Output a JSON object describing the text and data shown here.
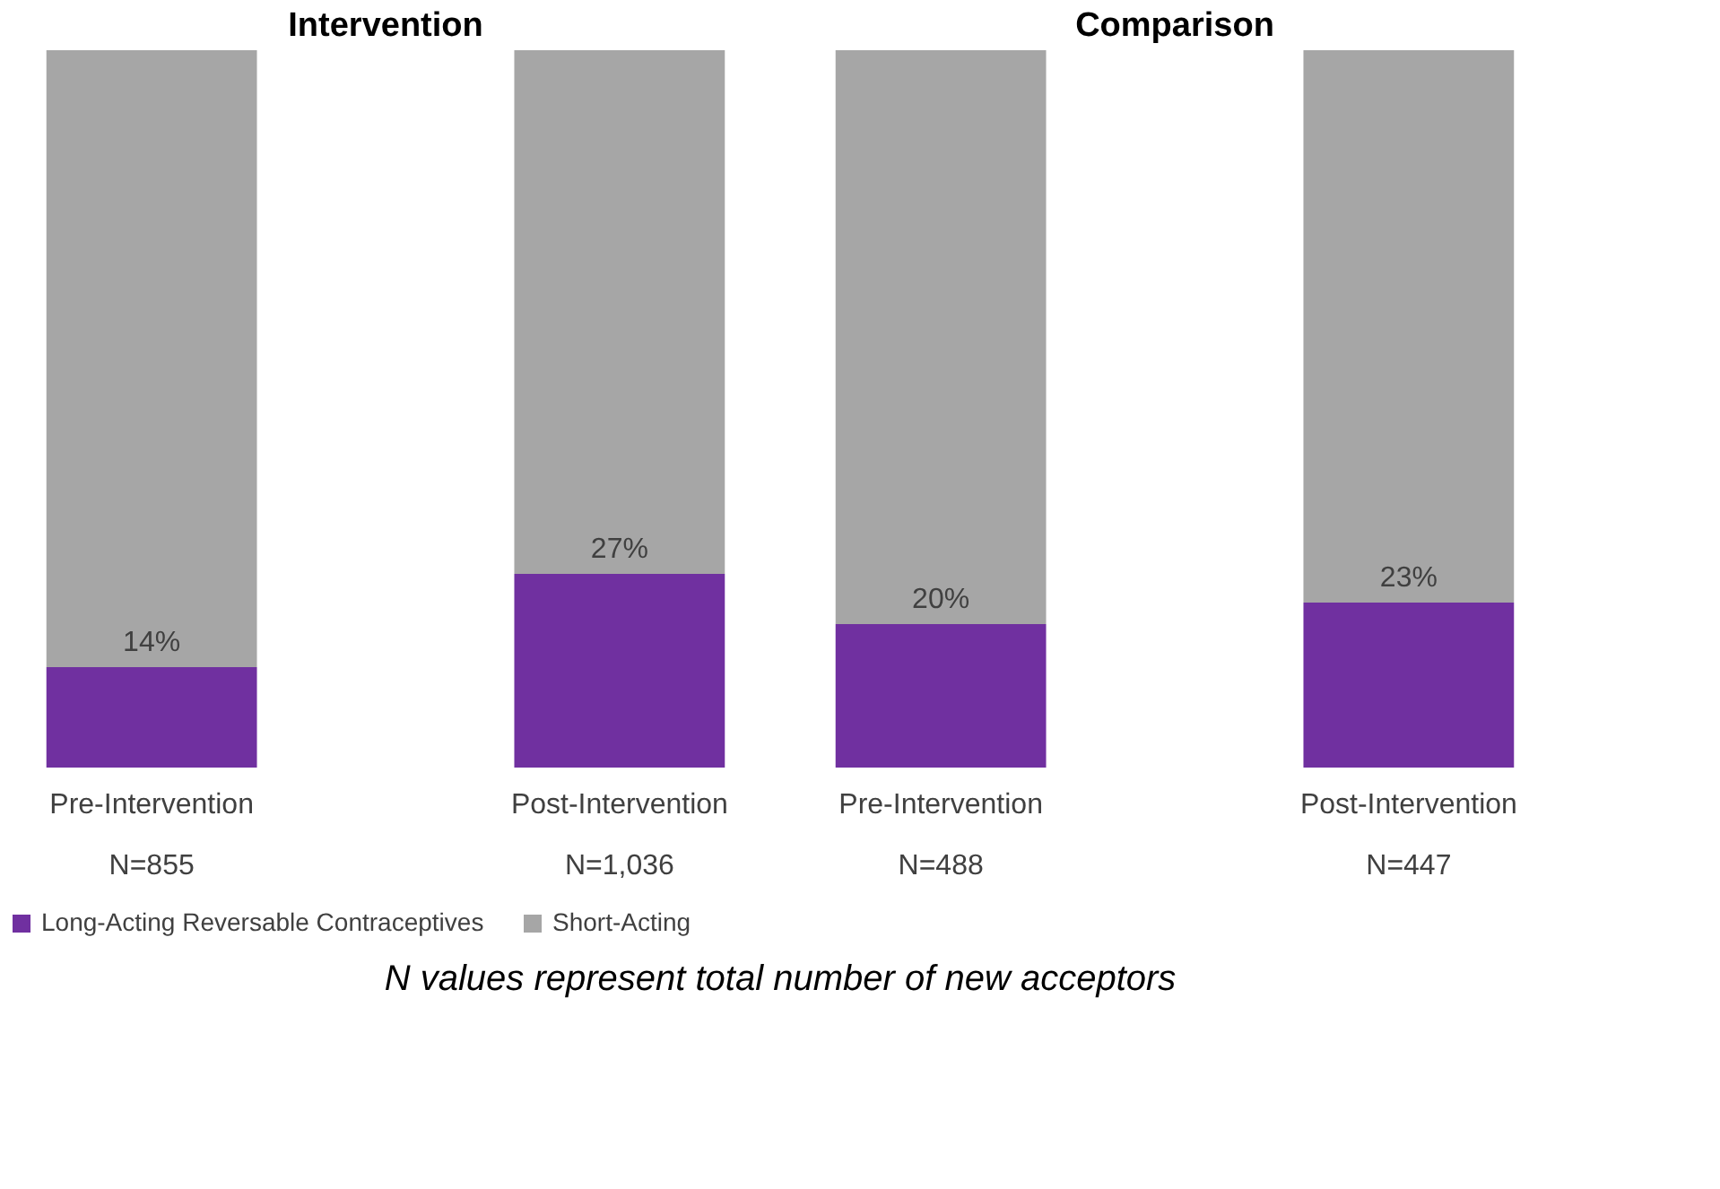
{
  "chart_data": [
    {
      "type": "bar",
      "title": "Intervention",
      "categories": [
        "Pre-Intervention\nN=855",
        "Post-Intervention\nN=1,036"
      ],
      "stacked": true,
      "tick_labels": "x",
      "legend": "bottom",
      "grid": false,
      "series": [
        {
          "name": "Long-Acting Reversable Contraceptives",
          "color": "#7030a0",
          "values": [
            14,
            27
          ],
          "value_labels": [
            "14%",
            "27%"
          ]
        },
        {
          "name": "Short-Acting",
          "color": "#a6a6a6",
          "values": [
            86,
            73
          ]
        }
      ],
      "annotations": [
        "N values represent total number of new acceptors"
      ]
    },
    {
      "type": "bar",
      "title": "Comparison",
      "categories": [
        "Pre-Intervention\nN=488",
        "Post-Intervention\nN=447"
      ],
      "stacked": true,
      "tick_labels": "x",
      "legend": "bottom",
      "grid": false,
      "series": [
        {
          "name": "Long-Acting Reversable Contraceptives",
          "color": "#7030a0",
          "values": [
            20,
            23
          ],
          "value_labels": [
            "20%",
            "23%"
          ]
        },
        {
          "name": "Short-Acting",
          "color": "#a6a6a6",
          "values": [
            80,
            77
          ]
        }
      ]
    }
  ]
}
